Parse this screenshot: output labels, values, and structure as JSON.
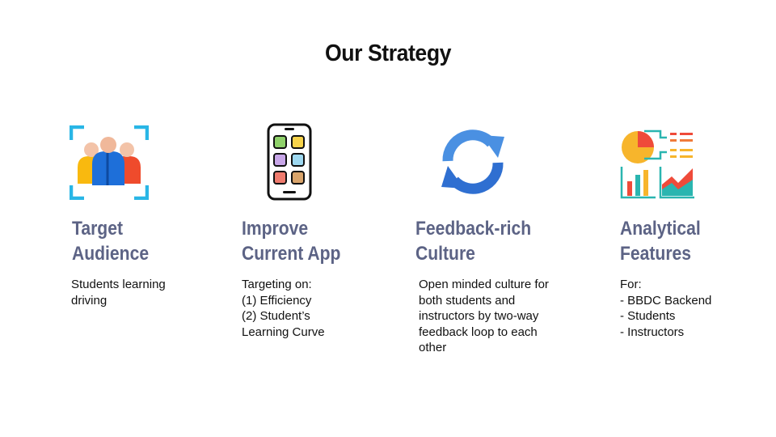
{
  "slide": {
    "title": "Our Strategy"
  },
  "columns": [
    {
      "icon": "target-audience-icon",
      "heading": [
        "Target",
        "Audience"
      ],
      "body": [
        "Students learning",
        "driving"
      ]
    },
    {
      "icon": "mobile-app-icon",
      "heading": [
        "Improve",
        "Current App"
      ],
      "body": [
        "Targeting on:",
        "(1) Efficiency",
        "(2) Student’s",
        "Learning Curve"
      ]
    },
    {
      "icon": "refresh-cycle-icon",
      "heading": [
        "Feedback-rich",
        "Culture"
      ],
      "body": [
        "Open minded culture for",
        "both students and",
        "instructors by two-way",
        "feedback loop to each",
        "other"
      ]
    },
    {
      "icon": "analytics-dashboard-icon",
      "heading": [
        "Analytical",
        "Features"
      ],
      "body": [
        "For:",
        "- BBDC Backend",
        "- Students",
        "- Instructors"
      ]
    }
  ],
  "colors": {
    "heading": "#5c6385",
    "title": "#111111",
    "body": "#111111"
  }
}
